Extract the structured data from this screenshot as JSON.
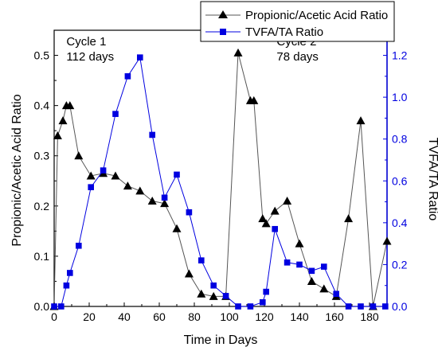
{
  "colors": {
    "series1": "#000000",
    "series1_line": "#555555",
    "series2": "#0000e0",
    "right_axis": "#0000e0",
    "left_axis": "#000000"
  },
  "chart_data": {
    "type": "line",
    "xlabel": "Time in Days",
    "ylabel_left": "Propionic/Acetic Acid Ratio",
    "ylabel_right": "TVFA/TA Ratio",
    "xlim": [
      0,
      190
    ],
    "ylim_left": [
      0,
      0.55
    ],
    "ylim_right": [
      0,
      1.32
    ],
    "x_ticks": [
      0,
      20,
      40,
      60,
      80,
      100,
      120,
      140,
      160,
      180
    ],
    "y_left_ticks": [
      0.0,
      0.1,
      0.2,
      0.3,
      0.4,
      0.5
    ],
    "y_left_tick_labels": [
      "0.0",
      "0.1",
      "0.2",
      "0.3",
      "0.4",
      "0.5"
    ],
    "y_right_ticks": [
      0.0,
      0.2,
      0.4,
      0.6,
      0.8,
      1.0,
      1.2
    ],
    "y_right_tick_labels": [
      "0.0",
      "0.2",
      "0.4",
      "0.6",
      "0.8",
      "1.0",
      "1.2"
    ],
    "grid": false,
    "legend_position": "top-right",
    "annotations": [
      {
        "lines": [
          "Cycle 1",
          "112 days"
        ],
        "x": 7,
        "y": 0.52,
        "axis": "left"
      },
      {
        "lines": [
          "Cycle 2",
          "78 days"
        ],
        "x": 127,
        "y": 0.52,
        "axis": "left"
      }
    ],
    "series": [
      {
        "name": "Propionic/Acetic Acid Ratio",
        "axis": "left",
        "marker": "triangle",
        "x": [
          0,
          2,
          5,
          7,
          9,
          14,
          21,
          28,
          35,
          42,
          49,
          56,
          63,
          70,
          77,
          84,
          91,
          98,
          105,
          112,
          114,
          119,
          121,
          126,
          133,
          140,
          147,
          154,
          161,
          168,
          175,
          182,
          190
        ],
        "y": [
          0.0,
          0.34,
          0.37,
          0.4,
          0.4,
          0.3,
          0.26,
          0.265,
          0.26,
          0.24,
          0.23,
          0.21,
          0.205,
          0.155,
          0.065,
          0.025,
          0.02,
          0.02,
          0.505,
          0.41,
          0.41,
          0.175,
          0.165,
          0.19,
          0.21,
          0.125,
          0.05,
          0.035,
          0.02,
          0.175,
          0.37,
          0.0,
          0.13
        ]
      },
      {
        "name": "TVFA/TA Ratio",
        "axis": "right",
        "marker": "square",
        "x": [
          0,
          4,
          7,
          9,
          14,
          21,
          28,
          35,
          42,
          49,
          56,
          63,
          70,
          77,
          84,
          91,
          98,
          105,
          112,
          119,
          121,
          126,
          133,
          140,
          147,
          154,
          161,
          168,
          175,
          182,
          189
        ],
        "y": [
          0.0,
          0.0,
          0.1,
          0.16,
          0.29,
          0.57,
          0.65,
          0.92,
          1.1,
          1.19,
          0.82,
          0.52,
          0.63,
          0.45,
          0.22,
          0.1,
          0.05,
          0.0,
          0.0,
          0.02,
          0.07,
          0.37,
          0.21,
          0.2,
          0.17,
          0.19,
          0.06,
          0.0,
          0.0,
          0.0,
          0.0
        ]
      }
    ]
  }
}
